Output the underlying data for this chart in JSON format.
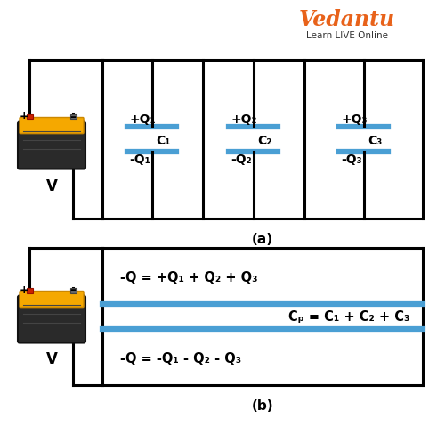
{
  "bg_color": "#ffffff",
  "line_color": "#000000",
  "plate_color": "#4a9fd4",
  "text_color": "#000000",
  "vedantu_orange": "#e8621a",
  "cap_labels_top": [
    "+Q₁",
    "+Q₂",
    "+Q₃"
  ],
  "cap_labels_bot": [
    "-Q₁",
    "-Q₂",
    "-Q₃"
  ],
  "cap_names": [
    "C₁",
    "C₂",
    "C₃"
  ],
  "eq_top": "-Q = +Q₁ + Q₂ + Q₃",
  "eq_mid": "Cₚ = C₁ + C₂ + C₃",
  "eq_bot": "-Q = -Q₁ - Q₂ - Q₃",
  "title_a": "(a)",
  "title_b": "(b)",
  "V_label": "V",
  "lw": 2.2
}
